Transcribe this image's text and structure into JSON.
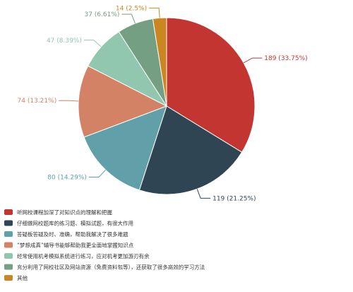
{
  "chart_data": {
    "type": "pie",
    "title": "",
    "legend_position": "bottom-left",
    "slices": [
      {
        "label": "听网校课程加深了对知识点的理解和把握",
        "value": 189,
        "percent": "33.75%",
        "color": "#c23531"
      },
      {
        "label": "仔细做网校题库的练习题、模拟试题，有很大作用",
        "value": 119,
        "percent": "21.25%",
        "color": "#2f4554"
      },
      {
        "label": "答疑板答疑及时、准确，帮助我解决了很多难题",
        "value": 80,
        "percent": "14.29%",
        "color": "#61a0a8"
      },
      {
        "label": "“梦想成真”辅导书能够帮助我更全面地掌握知识点",
        "value": 74,
        "percent": "13.21%",
        "color": "#d48265"
      },
      {
        "label": "经常使用机考模拟系统进行练习，应对机考更加游刃有余",
        "value": 47,
        "percent": "8.39%",
        "color": "#91c7ae"
      },
      {
        "label": "充分利用了网校社区及网站资源（免费资料包等），还获取了很多高效的学习方法",
        "value": 37,
        "percent": "6.61%",
        "color": "#749f83"
      },
      {
        "label": "其他",
        "value": 14,
        "percent": "2.5%",
        "color": "#ca8622"
      }
    ]
  }
}
